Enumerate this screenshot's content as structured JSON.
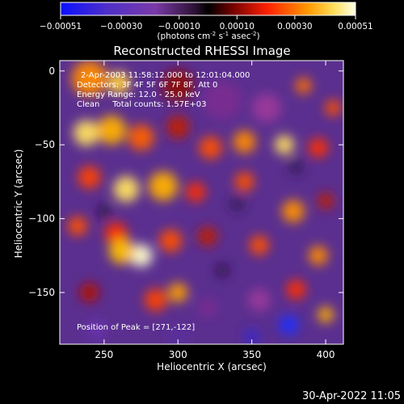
{
  "chart_data": {
    "type": "heatmap",
    "title": "Reconstructed RHESSI Image",
    "xlabel": "Heliocentric X (arcsec)",
    "ylabel": "Heliocentric Y (arcsec)",
    "xlim": [
      220,
      412
    ],
    "ylim": [
      -185,
      7
    ],
    "xticks": [
      250,
      300,
      350,
      400
    ],
    "yticks": [
      0,
      -50,
      -100,
      -150
    ],
    "colorbar": {
      "range": [
        -0.00051,
        0.00051
      ],
      "ticks": [
        "-0.00051",
        "-0.00030",
        "-0.00010",
        "0.00010",
        "0.00030",
        "0.00051"
      ],
      "tick_values": [
        -0.00051,
        -0.0003,
        -0.0001,
        0.0001,
        0.0003,
        0.00051
      ],
      "unit_main": "(photons cm",
      "unit_exp1": "-2",
      "unit_mid": " s",
      "unit_exp2": "-1",
      "unit_mid2": " asec",
      "unit_exp3": "-2",
      "unit_end": ")"
    },
    "annotations": [
      "2-Apr-2003 11:58:12.000 to 12:01:04.000",
      "Detectors: 3F 4F 5F 6F 7F 8F, Att 0",
      "Energy Range: 12.0 - 25.0 keV",
      "Clean     Total counts: 1.57E+03"
    ],
    "peak_label": "Position of Peak = [271,-122]",
    "peak": [
      271,
      -122
    ],
    "grid": false
  },
  "footer": {
    "timestamp": "30-Apr-2022 11:05"
  },
  "colors": {
    "background": "#000000",
    "text": "#ffffff",
    "colormap": [
      "#0000ff",
      "#40208a",
      "#6a3aa0",
      "#000000",
      "#8a0000",
      "#ff3000",
      "#ff9a00",
      "#ffff80",
      "#ffffff"
    ]
  }
}
